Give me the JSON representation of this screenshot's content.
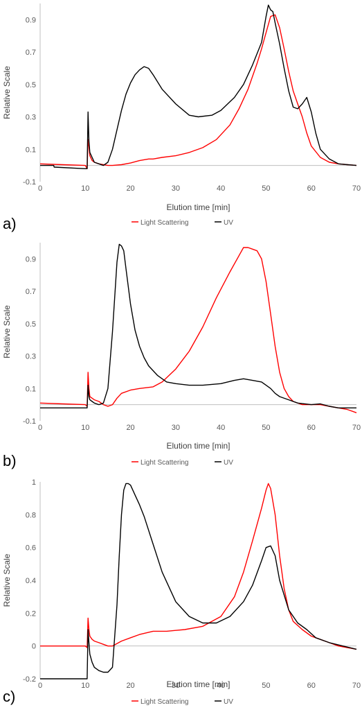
{
  "chart_data": [
    {
      "type": "line",
      "panel_label": "a)",
      "xlabel": "Elution time [min]",
      "ylabel": "Relative Scale",
      "xlim": [
        0,
        70
      ],
      "ylim": [
        -0.1,
        1.0
      ],
      "x_ticks": [
        "0",
        "10",
        "20",
        "30",
        "40",
        "50",
        "60",
        "70"
      ],
      "y_ticks": [
        "-0.1",
        "0.1",
        "0.3",
        "0.5",
        "0.7",
        "0.9"
      ],
      "y_tick_values": [
        -0.1,
        0.1,
        0.3,
        0.5,
        0.7,
        0.9
      ],
      "grid": false,
      "legend_position": "bottom",
      "series": [
        {
          "name": "Light Scattering",
          "color": "#ff0000",
          "x": [
            0,
            5,
            10,
            10.4,
            10.6,
            10.8,
            11,
            11.5,
            12,
            13,
            14,
            15,
            16,
            18,
            20,
            22,
            24,
            25,
            27,
            30,
            33,
            36,
            39,
            42,
            44,
            46,
            48,
            49,
            50,
            51,
            52,
            53,
            54,
            55,
            56,
            57,
            58,
            59,
            60,
            62,
            64,
            66,
            68,
            70
          ],
          "y": [
            0.01,
            0.005,
            0.0,
            -0.02,
            0.16,
            0.12,
            0.06,
            0.03,
            0.02,
            0.01,
            0.005,
            0.0,
            0.0,
            0.005,
            0.015,
            0.03,
            0.04,
            0.04,
            0.05,
            0.06,
            0.08,
            0.11,
            0.16,
            0.25,
            0.35,
            0.47,
            0.63,
            0.72,
            0.82,
            0.92,
            0.93,
            0.85,
            0.72,
            0.58,
            0.46,
            0.38,
            0.3,
            0.2,
            0.12,
            0.05,
            0.02,
            0.01,
            0.005,
            0.0
          ]
        },
        {
          "name": "UV",
          "color": "#000000",
          "x": [
            0,
            3,
            3.1,
            10,
            10.4,
            10.6,
            10.8,
            11,
            11.5,
            12,
            13,
            14,
            15,
            16,
            17,
            18,
            19,
            20,
            21,
            22,
            23,
            24,
            25,
            27,
            30,
            33,
            35,
            38,
            40,
            43,
            45,
            47,
            49,
            50,
            50.5,
            51,
            51.5,
            52,
            53,
            54,
            55,
            56,
            57,
            58,
            59,
            60,
            61,
            62,
            64,
            66,
            68,
            70
          ],
          "y": [
            0.0,
            0.0,
            -0.01,
            -0.02,
            -0.02,
            0.33,
            0.15,
            0.08,
            0.05,
            0.02,
            0.01,
            0.0,
            0.02,
            0.1,
            0.22,
            0.34,
            0.44,
            0.51,
            0.56,
            0.59,
            0.61,
            0.6,
            0.56,
            0.47,
            0.38,
            0.31,
            0.3,
            0.31,
            0.34,
            0.42,
            0.5,
            0.62,
            0.76,
            0.92,
            0.99,
            0.96,
            0.95,
            0.88,
            0.75,
            0.6,
            0.46,
            0.36,
            0.35,
            0.38,
            0.42,
            0.33,
            0.2,
            0.1,
            0.04,
            0.01,
            0.005,
            0.0
          ]
        }
      ]
    },
    {
      "type": "line",
      "panel_label": "b)",
      "xlabel": "Elution time [min]",
      "ylabel": "Relative Scale",
      "xlim": [
        0,
        70
      ],
      "ylim": [
        -0.1,
        1.0
      ],
      "x_ticks": [
        "0",
        "10",
        "20",
        "30",
        "40",
        "50",
        "60",
        "70"
      ],
      "y_ticks": [
        "-0.1",
        "0.1",
        "0.3",
        "0.5",
        "0.7",
        "0.9"
      ],
      "y_tick_values": [
        -0.1,
        0.1,
        0.3,
        0.5,
        0.7,
        0.9
      ],
      "grid": false,
      "legend_position": "bottom",
      "series": [
        {
          "name": "Light Scattering",
          "color": "#ff0000",
          "x": [
            0,
            5,
            10,
            10.4,
            10.6,
            10.8,
            11,
            11.5,
            12,
            13,
            14,
            15,
            16,
            17,
            18,
            20,
            22,
            25,
            27,
            30,
            33,
            36,
            39,
            42,
            44,
            45,
            46,
            47,
            48,
            49,
            50,
            51,
            52,
            53,
            54,
            55,
            56,
            58,
            60,
            62,
            64,
            66,
            68,
            70
          ],
          "y": [
            0.01,
            0.005,
            0.0,
            -0.01,
            0.2,
            0.1,
            0.05,
            0.04,
            0.03,
            0.02,
            0.0,
            -0.01,
            0.0,
            0.04,
            0.07,
            0.09,
            0.1,
            0.11,
            0.14,
            0.22,
            0.33,
            0.48,
            0.66,
            0.82,
            0.92,
            0.97,
            0.97,
            0.96,
            0.95,
            0.9,
            0.76,
            0.56,
            0.36,
            0.2,
            0.1,
            0.05,
            0.02,
            0.0,
            0.0,
            0.0,
            -0.01,
            -0.02,
            -0.03,
            -0.05
          ]
        },
        {
          "name": "UV",
          "color": "#000000",
          "x": [
            0,
            5,
            10,
            10.4,
            10.6,
            10.8,
            11,
            11.5,
            12,
            13,
            14,
            15,
            16,
            17,
            17.5,
            18,
            18.5,
            19,
            20,
            21,
            22,
            23,
            24,
            26,
            28,
            30,
            33,
            36,
            40,
            43,
            45,
            47,
            49,
            50,
            51,
            52,
            53,
            55,
            57,
            60,
            62,
            64,
            66,
            68,
            70
          ],
          "y": [
            -0.02,
            -0.02,
            -0.02,
            -0.02,
            0.12,
            0.05,
            0.03,
            0.02,
            0.01,
            0.0,
            0.01,
            0.1,
            0.45,
            0.88,
            0.99,
            0.98,
            0.95,
            0.84,
            0.62,
            0.46,
            0.36,
            0.29,
            0.24,
            0.18,
            0.14,
            0.13,
            0.12,
            0.12,
            0.13,
            0.15,
            0.16,
            0.15,
            0.14,
            0.12,
            0.1,
            0.07,
            0.05,
            0.03,
            0.01,
            0.0,
            0.005,
            -0.01,
            -0.02,
            -0.02,
            -0.02
          ]
        }
      ]
    },
    {
      "type": "line",
      "panel_label": "c)",
      "xlabel": "Elution time [min]",
      "ylabel": "Relative Scale",
      "xlim": [
        0,
        70
      ],
      "ylim": [
        -0.2,
        1.0
      ],
      "x_ticks": [
        "0",
        "10",
        "20",
        "30",
        "40",
        "50",
        "60",
        "70"
      ],
      "y_ticks": [
        "-0.2",
        "0",
        "0.2",
        "0.4",
        "0.6",
        "0.8",
        "1"
      ],
      "y_tick_values": [
        -0.2,
        0,
        0.2,
        0.4,
        0.6,
        0.8,
        1.0
      ],
      "grid": false,
      "legend_position": "bottom",
      "series": [
        {
          "name": "Light Scattering",
          "color": "#ff0000",
          "x": [
            0,
            5,
            10,
            10.4,
            10.6,
            10.8,
            11,
            11.5,
            12,
            13,
            14,
            15,
            16,
            18,
            20,
            22,
            25,
            28,
            32,
            36,
            40,
            43,
            45,
            47,
            49,
            50,
            50.5,
            51,
            52,
            53,
            54,
            55,
            56,
            58,
            60,
            62,
            64,
            66,
            68,
            70
          ],
          "y": [
            0.0,
            0.0,
            0.0,
            -0.01,
            0.17,
            0.1,
            0.06,
            0.04,
            0.03,
            0.02,
            0.01,
            0.0,
            0.0,
            0.03,
            0.05,
            0.07,
            0.09,
            0.09,
            0.1,
            0.12,
            0.18,
            0.3,
            0.45,
            0.64,
            0.84,
            0.95,
            0.99,
            0.96,
            0.8,
            0.55,
            0.35,
            0.22,
            0.15,
            0.1,
            0.06,
            0.04,
            0.02,
            0.0,
            -0.01,
            -0.02
          ]
        },
        {
          "name": "UV",
          "color": "#000000",
          "x": [
            0,
            10,
            10.2,
            10.4,
            10.6,
            10.8,
            11,
            11.5,
            12,
            13,
            14,
            15,
            16,
            17,
            17.5,
            18,
            18.5,
            19,
            19.5,
            20,
            21,
            22,
            23,
            25,
            27,
            30,
            33,
            36,
            39,
            42,
            45,
            47,
            49,
            50,
            51,
            52,
            53,
            55,
            57,
            59,
            61,
            64,
            67,
            70
          ],
          "y": [
            -0.2,
            -0.2,
            -0.2,
            -0.2,
            0.1,
            0.02,
            -0.05,
            -0.1,
            -0.13,
            -0.15,
            -0.16,
            -0.16,
            -0.13,
            0.25,
            0.55,
            0.8,
            0.95,
            0.99,
            0.99,
            0.98,
            0.92,
            0.86,
            0.79,
            0.62,
            0.45,
            0.27,
            0.18,
            0.14,
            0.14,
            0.18,
            0.27,
            0.37,
            0.52,
            0.6,
            0.61,
            0.55,
            0.4,
            0.22,
            0.14,
            0.1,
            0.05,
            0.02,
            0.0,
            -0.02
          ]
        }
      ]
    }
  ]
}
